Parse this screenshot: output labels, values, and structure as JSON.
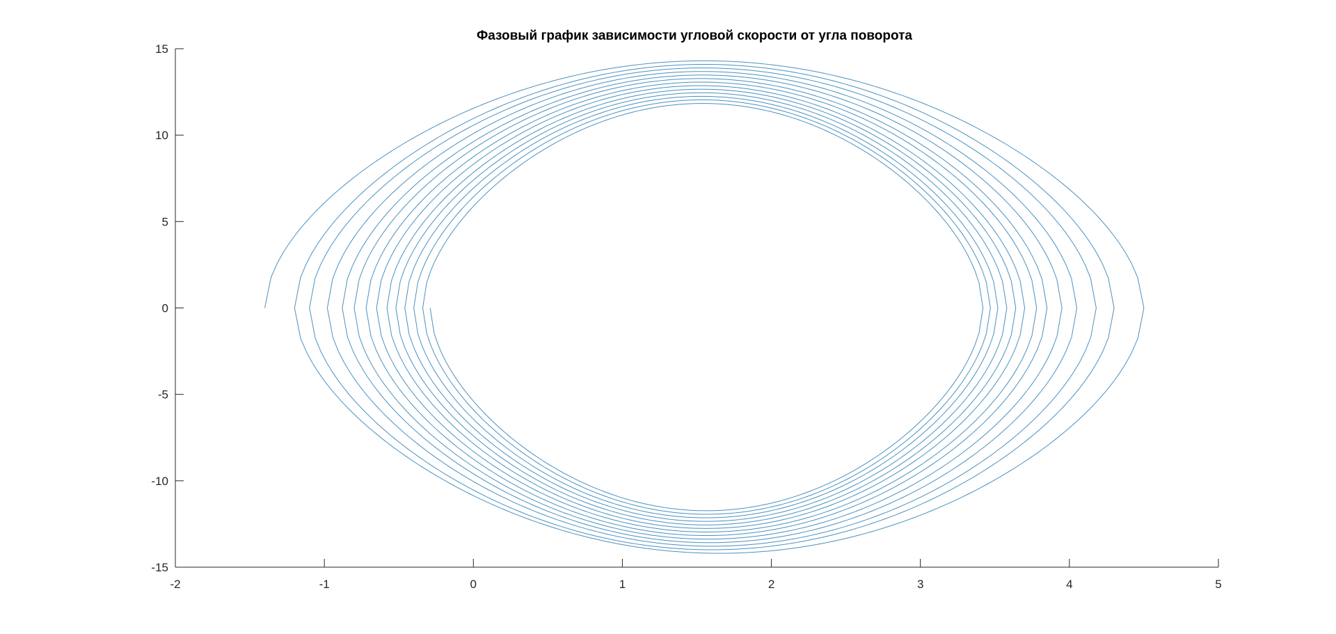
{
  "chart_data": {
    "type": "line",
    "title": "Фазовый график зависимости угловой скорости от угла поворота",
    "xlabel": "",
    "ylabel": "",
    "xlim": [
      -2,
      5
    ],
    "ylim": [
      -15,
      15
    ],
    "xticks": [
      "-2",
      "-1",
      "0",
      "1",
      "2",
      "3",
      "4",
      "5"
    ],
    "yticks": [
      "-15",
      "-10",
      "-5",
      "0",
      "5",
      "10",
      "15"
    ],
    "grid": false,
    "series_color": "#4a90c0",
    "series": [
      {
        "start": [
          -1.4,
          0
        ],
        "center_x": 1.57,
        "turning_points_x_right": [
          4.5,
          4.3,
          4.18,
          4.05,
          3.95,
          3.85,
          3.78,
          3.7,
          3.64,
          3.58,
          3.52,
          3.47,
          3.42
        ],
        "turning_points_x_left": [
          -1.2,
          -1.1,
          -0.98,
          -0.88,
          -0.8,
          -0.72,
          -0.65,
          -0.58,
          -0.52,
          -0.46,
          -0.4,
          -0.34,
          -0.29
        ],
        "peak_velocity_max": 14.3,
        "peak_velocity_min": 11.4
      }
    ]
  }
}
